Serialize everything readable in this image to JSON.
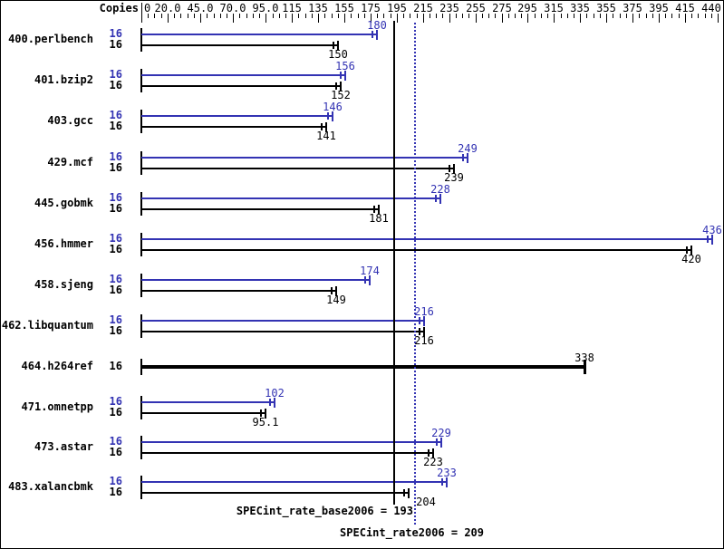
{
  "chart_data": {
    "type": "bar",
    "orientation": "horizontal",
    "copies_header": "Copies",
    "axis": {
      "min": 0,
      "max": 440,
      "minor_step": 5,
      "ticks": [
        {
          "v": 0,
          "label": "0"
        },
        {
          "v": 20,
          "label": "20.0"
        },
        {
          "v": 45,
          "label": "45.0"
        },
        {
          "v": 70,
          "label": "70.0"
        },
        {
          "v": 95,
          "label": "95.0"
        },
        {
          "v": 115,
          "label": "115"
        },
        {
          "v": 135,
          "label": "135"
        },
        {
          "v": 155,
          "label": "155"
        },
        {
          "v": 175,
          "label": "175"
        },
        {
          "v": 195,
          "label": "195"
        },
        {
          "v": 215,
          "label": "215"
        },
        {
          "v": 235,
          "label": "235"
        },
        {
          "v": 255,
          "label": "255"
        },
        {
          "v": 275,
          "label": "275"
        },
        {
          "v": 295,
          "label": "295"
        },
        {
          "v": 315,
          "label": "315"
        },
        {
          "v": 335,
          "label": "335"
        },
        {
          "v": 355,
          "label": "355"
        },
        {
          "v": 375,
          "label": "375"
        },
        {
          "v": 395,
          "label": "395"
        },
        {
          "v": 415,
          "label": "415"
        },
        {
          "v": 440,
          "label": "440"
        }
      ]
    },
    "benchmarks": [
      {
        "name": "400.perlbench",
        "copies": "16",
        "peak": {
          "value": 180,
          "label": "180"
        },
        "base": {
          "value": 150,
          "label": "150"
        }
      },
      {
        "name": "401.bzip2",
        "copies": "16",
        "peak": {
          "value": 156,
          "label": "156"
        },
        "base": {
          "value": 152,
          "label": "152"
        }
      },
      {
        "name": "403.gcc",
        "copies": "16",
        "peak": {
          "value": 146,
          "label": "146"
        },
        "base": {
          "value": 141,
          "label": "141"
        }
      },
      {
        "name": "429.mcf",
        "copies": "16",
        "peak": {
          "value": 249,
          "label": "249"
        },
        "base": {
          "value": 239,
          "label": "239"
        }
      },
      {
        "name": "445.gobmk",
        "copies": "16",
        "peak": {
          "value": 228,
          "label": "228"
        },
        "base": {
          "value": 181,
          "label": "181"
        }
      },
      {
        "name": "456.hmmer",
        "copies": "16",
        "peak": {
          "value": 436,
          "label": "436"
        },
        "base": {
          "value": 420,
          "label": "420"
        }
      },
      {
        "name": "458.sjeng",
        "copies": "16",
        "peak": {
          "value": 174,
          "label": "174"
        },
        "base": {
          "value": 149,
          "label": "149"
        }
      },
      {
        "name": "462.libquantum",
        "copies": "16",
        "peak": {
          "value": 216,
          "label": "216"
        },
        "base": {
          "value": 216,
          "label": "216"
        }
      },
      {
        "name": "464.h264ref",
        "copies": "16",
        "single": true,
        "base": {
          "value": 338,
          "label": "338"
        }
      },
      {
        "name": "471.omnetpp",
        "copies": "16",
        "peak": {
          "value": 102,
          "label": "102"
        },
        "base": {
          "value": 95.1,
          "label": "95.1"
        }
      },
      {
        "name": "473.astar",
        "copies": "16",
        "peak": {
          "value": 229,
          "label": "229"
        },
        "base": {
          "value": 223,
          "label": "223"
        }
      },
      {
        "name": "483.xalancbmk",
        "copies": "16",
        "peak": {
          "value": 233,
          "label": "233"
        },
        "base": {
          "value": 204,
          "label": "204",
          "label_dx": 19
        }
      }
    ],
    "summary": {
      "base_label": "SPECint_rate_base2006 = 193",
      "base_value": 193,
      "peak_label": "SPECint_rate2006 = 209",
      "peak_value": 209
    },
    "colors": {
      "peak_blue": "#3333b3",
      "base_black": "#000000"
    }
  }
}
